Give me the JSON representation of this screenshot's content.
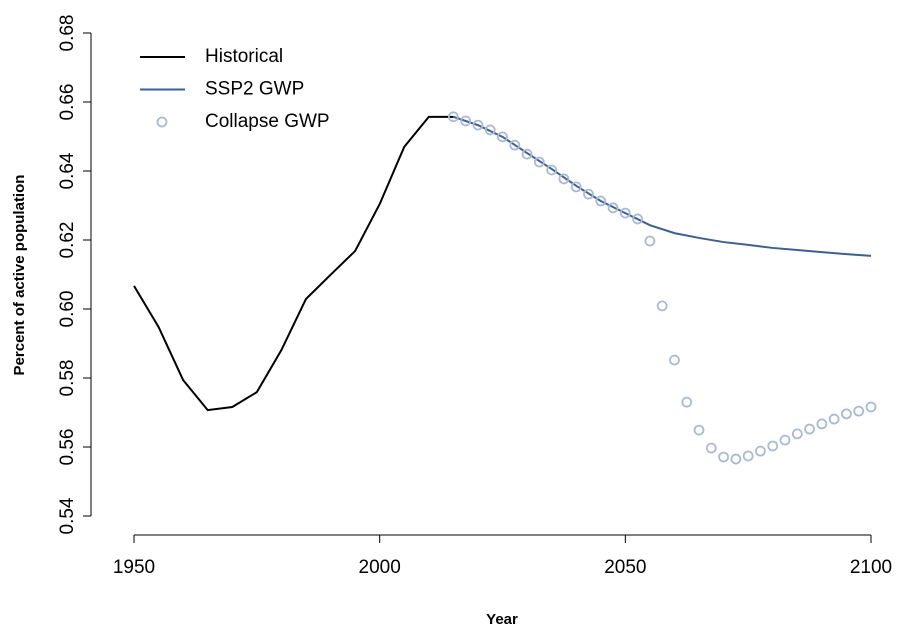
{
  "chart_data": {
    "type": "line",
    "xlabel": "Year",
    "ylabel": "Percent of active population",
    "xlim": [
      1950,
      2100
    ],
    "xticks": [
      1950,
      2000,
      2050,
      2100
    ],
    "ylim": [
      0.54,
      0.68
    ],
    "yticks": [
      0.54,
      0.56,
      0.58,
      {
        "value": 0.6,
        "label": "0.60"
      },
      0.62,
      0.64,
      0.66,
      0.68
    ],
    "legend": "top-left",
    "series": [
      {
        "name": "Historical",
        "color": "#000000",
        "style": "line",
        "x": [
          1950,
          1955,
          1960,
          1965,
          1970,
          1975,
          1980,
          1985,
          1990,
          1995,
          2000,
          2005,
          2010,
          2015
        ],
        "values": [
          0.6067,
          0.5948,
          0.5794,
          0.5707,
          0.5716,
          0.5759,
          0.5881,
          0.6029,
          0.6099,
          0.6168,
          0.6304,
          0.647,
          0.6557,
          0.6557
        ]
      },
      {
        "name": "SSP2 GWP",
        "color": "#3c5f95",
        "style": "line",
        "x": [
          2015,
          2020,
          2025,
          2030,
          2035,
          2040,
          2045,
          2050,
          2055,
          2060,
          2065,
          2070,
          2075,
          2080,
          2085,
          2090,
          2095,
          2100
        ],
        "values": [
          0.6557,
          0.6533,
          0.6499,
          0.6452,
          0.6406,
          0.6357,
          0.6313,
          0.6278,
          0.6243,
          0.622,
          0.6206,
          0.6194,
          0.6186,
          0.6177,
          0.6171,
          0.6165,
          0.6159,
          0.6154
        ]
      },
      {
        "name": "Collapse GWP",
        "color": "#a9bbd4",
        "style": "points",
        "x": [
          2015,
          2017.5,
          2020,
          2022.5,
          2025,
          2027.5,
          2030,
          2032.5,
          2035,
          2037.5,
          2040,
          2042.5,
          2045,
          2047.5,
          2050,
          2052.5,
          2055,
          2057.5,
          2060,
          2062.5,
          2065,
          2067.5,
          2070,
          2072.5,
          2075,
          2077.5,
          2080,
          2082.5,
          2085,
          2087.5,
          2090,
          2092.5,
          2095,
          2097.5,
          2100
        ],
        "values": [
          0.6557,
          0.6545,
          0.6533,
          0.6519,
          0.6499,
          0.6475,
          0.6449,
          0.6426,
          0.6403,
          0.6377,
          0.6354,
          0.6333,
          0.6313,
          0.6293,
          0.6278,
          0.6261,
          0.6197,
          0.6009,
          0.5852,
          0.573,
          0.5649,
          0.5597,
          0.5571,
          0.5565,
          0.5574,
          0.5588,
          0.5603,
          0.562,
          0.5638,
          0.5652,
          0.5667,
          0.5681,
          0.5696,
          0.5704,
          0.5716
        ]
      }
    ]
  }
}
